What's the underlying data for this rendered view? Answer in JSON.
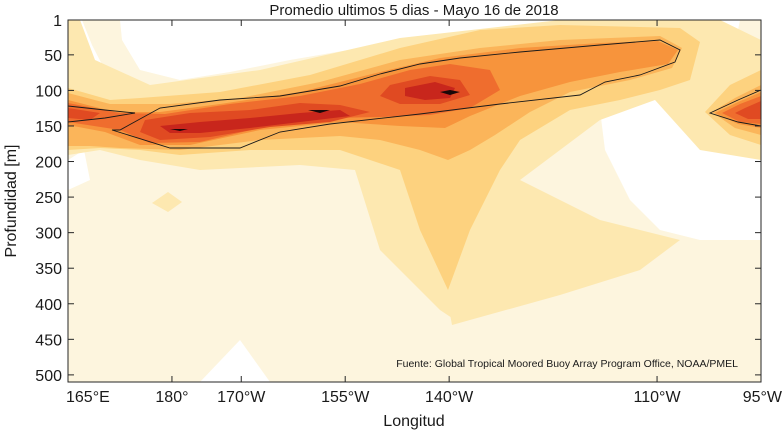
{
  "chart_data": {
    "type": "heatmap",
    "title": "Promedio ultimos 5 dias - Mayo 16 de 2018",
    "xlabel": "Longitud",
    "ylabel": "Profundidad [m]",
    "annotation": "Fuente: Global Tropical Moored Buoy Array Program Office, NOAA/PMEL",
    "x_ticks": [
      {
        "value": 165,
        "label": "165°E"
      },
      {
        "value": 180,
        "label": "180°"
      },
      {
        "value": 190,
        "label": "170°W"
      },
      {
        "value": 205,
        "label": "155°W"
      },
      {
        "value": 220,
        "label": "140°W"
      },
      {
        "value": 250,
        "label": "110°W"
      },
      {
        "value": 265,
        "label": "95°W"
      }
    ],
    "y_ticks": [
      1,
      50,
      100,
      150,
      200,
      250,
      300,
      350,
      400,
      450,
      500
    ],
    "xlim": [
      165,
      265
    ],
    "ylim": [
      1,
      510
    ],
    "y_reversed": true,
    "grid": false,
    "colormap": [
      "#ffffff",
      "#fdf5de",
      "#fde8b0",
      "#fdd27f",
      "#fbb55a",
      "#f7943c",
      "#ef6d2e",
      "#e04a22",
      "#c8261c",
      "#1a0808"
    ],
    "contour_color": "#1a1a1a"
  }
}
